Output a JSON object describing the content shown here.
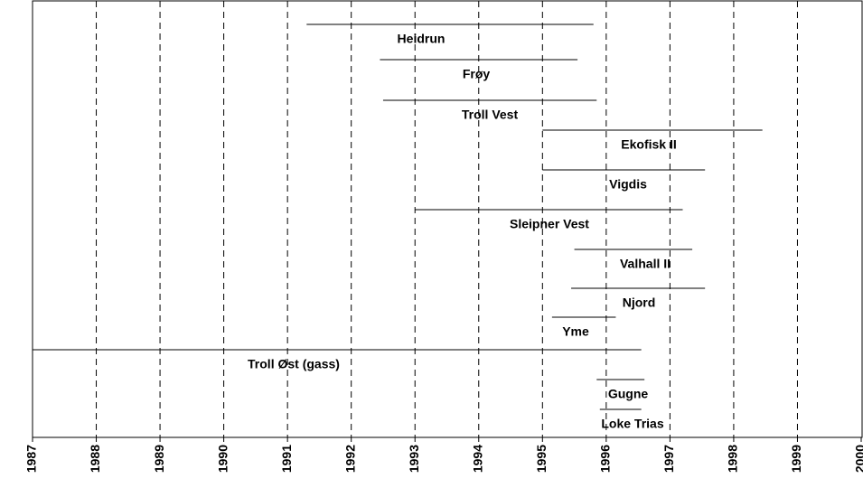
{
  "chart_data": {
    "type": "timeline",
    "categories": [
      "Heidrun",
      "Frøy",
      "Troll Vest",
      "Ekofisk II",
      "Vigdis",
      "Sleipner Vest",
      "Valhall II",
      "Njord",
      "Yme",
      "Troll Øst (gass)",
      "Gugne",
      "Loke Trias"
    ],
    "start": [
      1991.3,
      1992.45,
      1992.5,
      1995.0,
      1995.0,
      1993.0,
      1995.5,
      1995.45,
      1995.15,
      1987.0,
      1995.85,
      1995.9
    ],
    "end": [
      1995.8,
      1995.55,
      1995.85,
      1998.45,
      1997.55,
      1997.2,
      1997.35,
      1997.55,
      1996.15,
      1996.55,
      1996.6,
      1996.55
    ],
    "color": "#000000",
    "xlim": [
      1987,
      2000
    ],
    "xticks": [
      1987,
      1988,
      1989,
      1990,
      1991,
      1992,
      1993,
      1994,
      1995,
      1996,
      1997,
      1998,
      1999,
      2000
    ],
    "grid": true
  }
}
